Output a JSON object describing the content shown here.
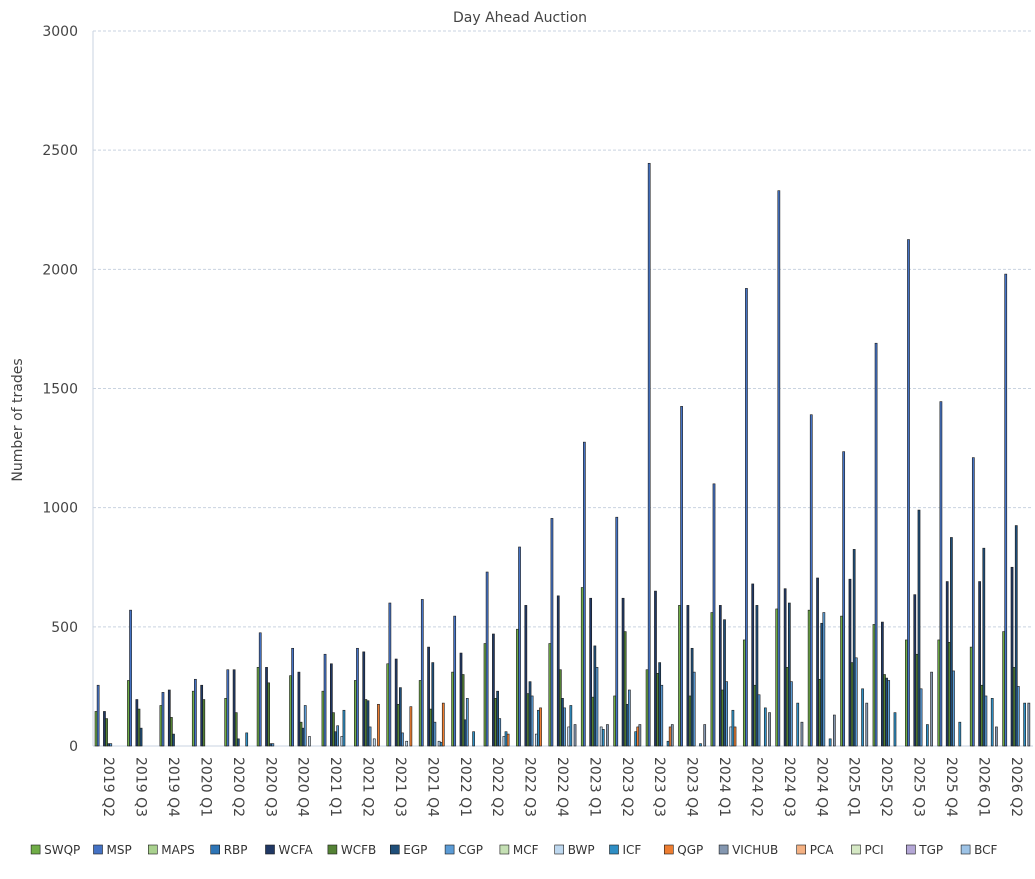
{
  "chart_data": {
    "type": "bar",
    "title": "Day Ahead Auction",
    "ylabel": "Number of trades",
    "ylim": [
      0,
      3000
    ],
    "yticks": [
      0,
      500,
      1000,
      1500,
      2000,
      2500,
      3000
    ],
    "grid": true,
    "legend_position": "bottom",
    "categories": [
      "2019 Q2",
      "2019 Q3",
      "2019 Q4",
      "2020 Q1",
      "2020 Q2",
      "2020 Q3",
      "2020 Q4",
      "2021 Q1",
      "2021 Q2",
      "2021 Q3",
      "2021 Q4",
      "2022 Q1",
      "2022 Q2",
      "2022 Q3",
      "2022 Q4",
      "2023 Q1",
      "2023 Q2",
      "2023 Q3",
      "2023 Q4",
      "2024 Q1",
      "2024 Q2",
      "2024 Q3",
      "2024 Q4",
      "2025 Q1",
      "2025 Q2",
      "2025 Q3",
      "2025 Q4",
      "2026 Q1",
      "2026 Q2"
    ],
    "series": [
      {
        "name": "SWQP",
        "color": "#70ad47",
        "values": [
          145,
          275,
          170,
          230,
          200,
          330,
          295,
          230,
          275,
          345,
          275,
          310,
          430,
          490,
          430,
          665,
          210,
          320,
          590,
          560,
          445,
          575,
          570,
          545,
          510,
          445,
          445,
          415,
          480
        ]
      },
      {
        "name": "MSP",
        "color": "#4472c4",
        "values": [
          255,
          570,
          225,
          280,
          320,
          475,
          410,
          385,
          410,
          600,
          615,
          545,
          730,
          835,
          955,
          1275,
          960,
          2445,
          1425,
          1100,
          1920,
          2330,
          1390,
          1235,
          1690,
          2125,
          1445,
          1210,
          1980
        ]
      },
      {
        "name": "MAPS",
        "color": "#a9d18e",
        "values": [
          0,
          0,
          0,
          0,
          0,
          0,
          0,
          0,
          0,
          0,
          0,
          0,
          0,
          0,
          0,
          0,
          0,
          0,
          0,
          0,
          0,
          0,
          0,
          0,
          0,
          0,
          0,
          0,
          0
        ]
      },
      {
        "name": "RBP",
        "color": "#2e75b6",
        "values": [
          0,
          0,
          0,
          0,
          0,
          0,
          0,
          0,
          0,
          0,
          0,
          0,
          0,
          0,
          0,
          0,
          0,
          0,
          0,
          0,
          0,
          0,
          0,
          0,
          0,
          0,
          0,
          0,
          0
        ]
      },
      {
        "name": "WCFA",
        "color": "#203864",
        "values": [
          145,
          195,
          235,
          255,
          320,
          330,
          310,
          345,
          395,
          365,
          415,
          390,
          470,
          590,
          630,
          620,
          620,
          650,
          590,
          590,
          680,
          660,
          705,
          700,
          520,
          635,
          690,
          690,
          750
        ]
      },
      {
        "name": "WCFB",
        "color": "#548235",
        "values": [
          115,
          155,
          120,
          195,
          140,
          265,
          100,
          140,
          195,
          175,
          155,
          300,
          200,
          220,
          320,
          205,
          480,
          305,
          210,
          235,
          255,
          330,
          280,
          350,
          300,
          385,
          435,
          255,
          330
        ]
      },
      {
        "name": "EGP",
        "color": "#1f4e79",
        "values": [
          10,
          75,
          50,
          0,
          30,
          10,
          75,
          60,
          190,
          245,
          350,
          110,
          230,
          270,
          200,
          420,
          175,
          350,
          410,
          530,
          590,
          600,
          515,
          825,
          285,
          990,
          875,
          830,
          925
        ]
      },
      {
        "name": "CGP",
        "color": "#5b9bd5",
        "values": [
          10,
          0,
          0,
          0,
          0,
          10,
          170,
          85,
          80,
          55,
          100,
          200,
          115,
          210,
          160,
          330,
          235,
          255,
          310,
          270,
          215,
          270,
          560,
          370,
          275,
          240,
          315,
          210,
          250
        ]
      },
      {
        "name": "MCF",
        "color": "#c5e0b4",
        "values": [
          0,
          0,
          0,
          0,
          0,
          0,
          0,
          0,
          0,
          0,
          0,
          0,
          0,
          0,
          0,
          0,
          0,
          0,
          0,
          0,
          0,
          0,
          0,
          0,
          0,
          0,
          0,
          0,
          0
        ]
      },
      {
        "name": "BWP",
        "color": "#bdd7ee",
        "values": [
          0,
          0,
          0,
          0,
          0,
          0,
          40,
          40,
          30,
          20,
          20,
          0,
          40,
          50,
          80,
          80,
          0,
          0,
          0,
          80,
          0,
          0,
          0,
          0,
          0,
          0,
          0,
          0,
          0
        ]
      },
      {
        "name": "ICF",
        "color": "#2f8ec4",
        "values": [
          0,
          0,
          0,
          0,
          55,
          0,
          0,
          150,
          0,
          0,
          15,
          60,
          60,
          150,
          170,
          70,
          60,
          20,
          10,
          150,
          160,
          180,
          30,
          240,
          140,
          90,
          100,
          200,
          180
        ]
      },
      {
        "name": "QGP",
        "color": "#ed7d31",
        "values": [
          0,
          0,
          0,
          0,
          0,
          0,
          0,
          0,
          175,
          165,
          180,
          0,
          50,
          160,
          0,
          0,
          80,
          80,
          0,
          80,
          0,
          0,
          0,
          0,
          0,
          0,
          0,
          0,
          0
        ]
      },
      {
        "name": "VICHUB",
        "color": "#8497b0",
        "values": [
          0,
          0,
          0,
          0,
          0,
          0,
          0,
          0,
          0,
          0,
          0,
          0,
          0,
          0,
          90,
          90,
          90,
          90,
          90,
          0,
          140,
          100,
          130,
          180,
          0,
          310,
          0,
          80,
          180
        ]
      },
      {
        "name": "PCA",
        "color": "#f4b183",
        "values": [
          0,
          0,
          0,
          0,
          0,
          0,
          0,
          0,
          0,
          0,
          0,
          0,
          0,
          0,
          0,
          0,
          0,
          0,
          0,
          0,
          0,
          0,
          0,
          0,
          0,
          0,
          0,
          0,
          0
        ]
      },
      {
        "name": "PCI",
        "color": "#d5e8c4",
        "values": [
          0,
          0,
          0,
          0,
          0,
          0,
          0,
          0,
          0,
          0,
          0,
          0,
          0,
          0,
          0,
          0,
          0,
          0,
          0,
          0,
          0,
          0,
          0,
          0,
          0,
          0,
          0,
          0,
          0
        ]
      },
      {
        "name": "TGP",
        "color": "#b4a7d6",
        "values": [
          0,
          0,
          0,
          0,
          0,
          0,
          0,
          0,
          0,
          0,
          0,
          0,
          0,
          0,
          0,
          0,
          0,
          0,
          0,
          0,
          0,
          0,
          0,
          0,
          0,
          0,
          0,
          0,
          0
        ]
      },
      {
        "name": "BCF",
        "color": "#9dc3e6",
        "values": [
          0,
          0,
          0,
          0,
          0,
          0,
          0,
          0,
          0,
          0,
          0,
          0,
          0,
          0,
          0,
          0,
          0,
          0,
          0,
          0,
          0,
          0,
          0,
          0,
          0,
          0,
          0,
          0,
          0
        ]
      }
    ]
  }
}
